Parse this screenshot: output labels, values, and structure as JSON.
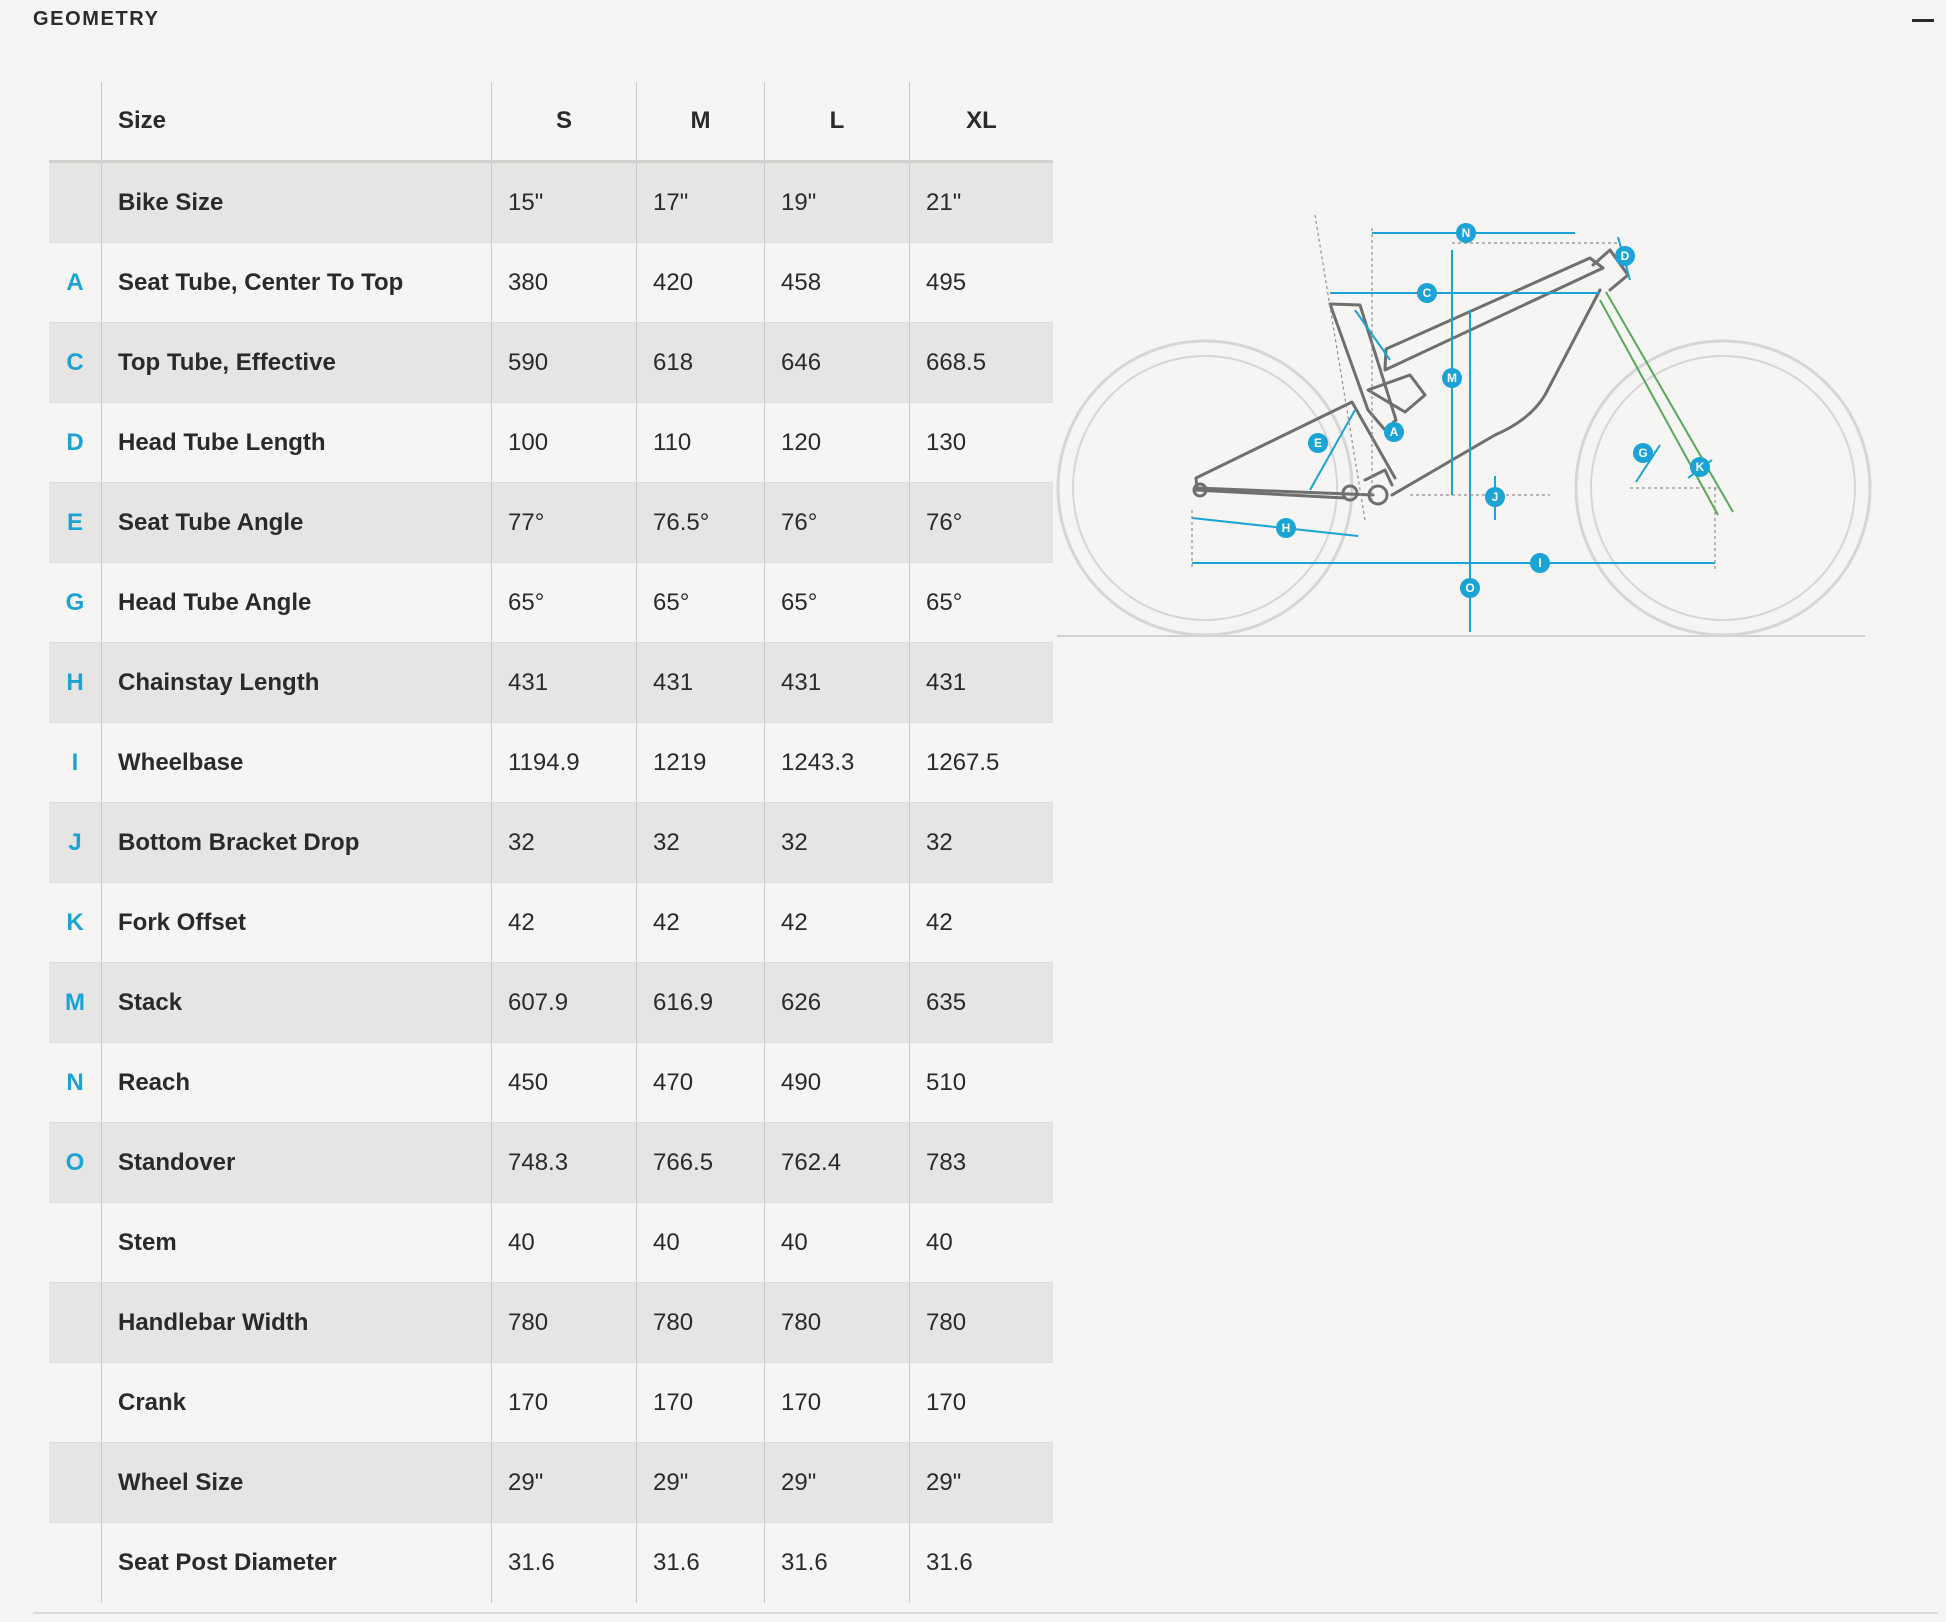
{
  "section": {
    "title": "GEOMETRY"
  },
  "table": {
    "header": {
      "size_label": "Size",
      "sizes": [
        "S",
        "M",
        "L",
        "XL"
      ]
    },
    "rows": [
      {
        "code": "",
        "name": "Bike Size",
        "values": [
          "15\"",
          "17\"",
          "19\"",
          "21\""
        ]
      },
      {
        "code": "A",
        "name": "Seat Tube, Center To Top",
        "values": [
          "380",
          "420",
          "458",
          "495"
        ]
      },
      {
        "code": "C",
        "name": "Top Tube, Effective",
        "values": [
          "590",
          "618",
          "646",
          "668.5"
        ]
      },
      {
        "code": "D",
        "name": "Head Tube Length",
        "values": [
          "100",
          "110",
          "120",
          "130"
        ]
      },
      {
        "code": "E",
        "name": "Seat Tube Angle",
        "values": [
          "77°",
          "76.5°",
          "76°",
          "76°"
        ]
      },
      {
        "code": "G",
        "name": "Head Tube Angle",
        "values": [
          "65°",
          "65°",
          "65°",
          "65°"
        ]
      },
      {
        "code": "H",
        "name": "Chainstay Length",
        "values": [
          "431",
          "431",
          "431",
          "431"
        ]
      },
      {
        "code": "I",
        "name": "Wheelbase",
        "values": [
          "1194.9",
          "1219",
          "1243.3",
          "1267.5"
        ]
      },
      {
        "code": "J",
        "name": "Bottom Bracket Drop",
        "values": [
          "32",
          "32",
          "32",
          "32"
        ]
      },
      {
        "code": "K",
        "name": "Fork Offset",
        "values": [
          "42",
          "42",
          "42",
          "42"
        ]
      },
      {
        "code": "M",
        "name": "Stack",
        "values": [
          "607.9",
          "616.9",
          "626",
          "635"
        ]
      },
      {
        "code": "N",
        "name": "Reach",
        "values": [
          "450",
          "470",
          "490",
          "510"
        ]
      },
      {
        "code": "O",
        "name": "Standover",
        "values": [
          "748.3",
          "766.5",
          "762.4",
          "783"
        ]
      },
      {
        "code": "",
        "name": "Stem",
        "values": [
          "40",
          "40",
          "40",
          "40"
        ]
      },
      {
        "code": "",
        "name": "Handlebar Width",
        "values": [
          "780",
          "780",
          "780",
          "780"
        ]
      },
      {
        "code": "",
        "name": "Crank",
        "values": [
          "170",
          "170",
          "170",
          "170"
        ]
      },
      {
        "code": "",
        "name": "Wheel Size",
        "values": [
          "29\"",
          "29\"",
          "29\"",
          "29\""
        ]
      },
      {
        "code": "",
        "name": "Seat Post Diameter",
        "values": [
          "31.6",
          "31.6",
          "31.6",
          "31.6"
        ]
      }
    ]
  },
  "diagram": {
    "markers": [
      "N",
      "D",
      "C",
      "M",
      "A",
      "E",
      "G",
      "K",
      "J",
      "H",
      "I",
      "O"
    ]
  },
  "colors": {
    "accent": "#1aa3d4",
    "frame": "#6b6b6b",
    "fork": "#5aa65c",
    "row_shade": "#e6e5e3",
    "background": "#f6f5f3"
  },
  "icons": {
    "collapse": "minus-icon"
  }
}
